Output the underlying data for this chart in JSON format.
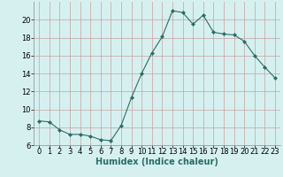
{
  "x": [
    0,
    1,
    2,
    3,
    4,
    5,
    6,
    7,
    8,
    9,
    10,
    11,
    12,
    13,
    14,
    15,
    16,
    17,
    18,
    19,
    20,
    21,
    22,
    23
  ],
  "y": [
    8.7,
    8.6,
    7.7,
    7.2,
    7.2,
    7.0,
    6.6,
    6.5,
    8.2,
    11.3,
    14.0,
    16.3,
    18.1,
    21.0,
    20.8,
    19.5,
    20.5,
    18.6,
    18.4,
    18.3,
    17.6,
    16.0,
    14.7,
    13.5
  ],
  "line_color": "#2a6e65",
  "marker": "D",
  "marker_size": 2.0,
  "bg_color": "#d6f0f0",
  "grid_color": "#c8a0a0",
  "xlabel": "Humidex (Indice chaleur)",
  "xlim": [
    -0.5,
    23.5
  ],
  "ylim": [
    6,
    22
  ],
  "yticks": [
    6,
    8,
    10,
    12,
    14,
    16,
    18,
    20
  ],
  "xticks": [
    0,
    1,
    2,
    3,
    4,
    5,
    6,
    7,
    8,
    9,
    10,
    11,
    12,
    13,
    14,
    15,
    16,
    17,
    18,
    19,
    20,
    21,
    22,
    23
  ],
  "tick_fontsize": 6.0,
  "xlabel_fontsize": 7.0
}
